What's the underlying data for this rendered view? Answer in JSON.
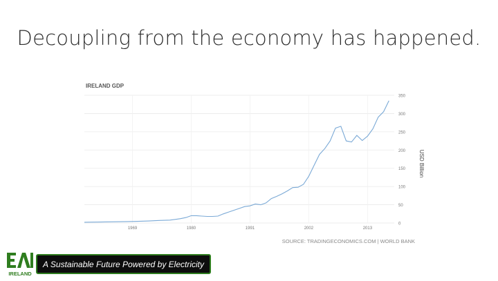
{
  "slide": {
    "title": "Decoupling from the economy has happened.",
    "tagline": "A Sustainable Future Powered by Electricity"
  },
  "logo": {
    "mark": "EAI",
    "text": "IRELAND",
    "color": "#2f7d1f"
  },
  "chart_data": {
    "type": "line",
    "title": "IRELAND GDP",
    "ylabel": "USD Billion",
    "source": "SOURCE: TRADINGECONOMICS.COM | WORLD BANK",
    "ylim": [
      0,
      350
    ],
    "yticks": [
      "0",
      "50",
      "100",
      "150",
      "200",
      "250",
      "300",
      "350"
    ],
    "xlim": [
      1960,
      2018
    ],
    "xticks": [
      {
        "label": "1969",
        "x": 1969
      },
      {
        "label": "1980",
        "x": 1980
      },
      {
        "label": "1991",
        "x": 1991
      },
      {
        "label": "2002",
        "x": 2002
      },
      {
        "label": "2013",
        "x": 2013
      }
    ],
    "grid": true,
    "line_color": "#7aa9d6",
    "series": [
      {
        "x": [
          1960,
          1962,
          1964,
          1966,
          1968,
          1970,
          1972,
          1974,
          1976,
          1978,
          1979,
          1980,
          1981,
          1982,
          1983,
          1984,
          1985,
          1986,
          1987,
          1988,
          1989,
          1990,
          1991,
          1992,
          1993,
          1994,
          1995,
          1996,
          1997,
          1998,
          1999,
          2000,
          2001,
          2002,
          2003,
          2004,
          2005,
          2006,
          2007,
          2008,
          2009,
          2010,
          2011,
          2012,
          2013,
          2014,
          2015,
          2016,
          2017
        ],
        "y": [
          2,
          2.5,
          3,
          3.5,
          4,
          4.5,
          5.5,
          7,
          8,
          12,
          15,
          20,
          20,
          19,
          18,
          18,
          19,
          25,
          30,
          35,
          40,
          45,
          47,
          52,
          50,
          55,
          67,
          73,
          80,
          88,
          97,
          98,
          106,
          128,
          158,
          188,
          204,
          225,
          260,
          265,
          225,
          222,
          240,
          226,
          238,
          258,
          290,
          305,
          335
        ]
      }
    ]
  }
}
